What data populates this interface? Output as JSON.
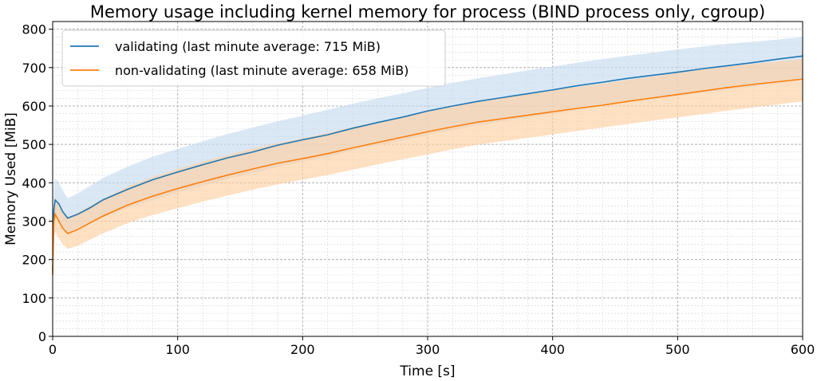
{
  "chart_data": {
    "type": "line",
    "title": "Memory usage including kernel memory for process (BIND process only, cgroup)",
    "xlabel": "Time [s]",
    "ylabel": "Memory Used [MiB]",
    "xlim": [
      0,
      600
    ],
    "ylim": [
      0,
      820
    ],
    "xticks": [
      0,
      100,
      200,
      300,
      400,
      500,
      600
    ],
    "yticks": [
      0,
      100,
      200,
      300,
      400,
      500,
      600,
      700,
      800
    ],
    "xtick_labels": [
      "0",
      "100",
      "200",
      "300",
      "400",
      "500",
      "600"
    ],
    "ytick_labels": [
      "0",
      "100",
      "200",
      "300",
      "400",
      "500",
      "600",
      "700",
      "800"
    ],
    "grid": true,
    "legend_position": "top-left",
    "series": [
      {
        "name": "validating (last minute average: 715 MiB)",
        "color": "#1f77b4",
        "band_color": "#c6dbef",
        "x": [
          0,
          1,
          2,
          3,
          5,
          8,
          12,
          20,
          30,
          40,
          60,
          80,
          100,
          120,
          140,
          160,
          180,
          200,
          220,
          240,
          260,
          280,
          300,
          320,
          340,
          360,
          380,
          400,
          420,
          440,
          460,
          480,
          500,
          520,
          540,
          560,
          580,
          600
        ],
        "y": [
          170,
          330,
          355,
          352,
          345,
          325,
          308,
          318,
          335,
          355,
          383,
          408,
          428,
          447,
          465,
          480,
          498,
          512,
          525,
          542,
          557,
          571,
          587,
          600,
          612,
          622,
          632,
          642,
          653,
          662,
          672,
          680,
          688,
          697,
          705,
          713,
          722,
          730
        ],
        "lower": [
          130,
          280,
          310,
          308,
          300,
          282,
          268,
          278,
          292,
          310,
          335,
          355,
          375,
          392,
          410,
          425,
          442,
          456,
          468,
          484,
          498,
          511,
          525,
          538,
          550,
          560,
          570,
          580,
          590,
          600,
          610,
          618,
          626,
          635,
          643,
          651,
          660,
          668
        ],
        "upper": [
          220,
          390,
          410,
          408,
          400,
          380,
          360,
          372,
          392,
          412,
          442,
          468,
          488,
          508,
          527,
          544,
          560,
          575,
          590,
          606,
          620,
          633,
          647,
          660,
          672,
          682,
          693,
          703,
          713,
          722,
          731,
          739,
          747,
          755,
          762,
          767,
          773,
          780
        ]
      },
      {
        "name": "non-validating (last minute average: 658 MiB)",
        "color": "#ff7f0e",
        "band_color": "#fdd0a2",
        "x": [
          0,
          1,
          2,
          3,
          5,
          8,
          12,
          20,
          30,
          40,
          60,
          80,
          100,
          120,
          140,
          160,
          180,
          200,
          220,
          240,
          260,
          280,
          300,
          320,
          340,
          360,
          380,
          400,
          420,
          440,
          460,
          480,
          500,
          520,
          540,
          560,
          580,
          600
        ],
        "y": [
          160,
          300,
          318,
          312,
          300,
          282,
          268,
          278,
          296,
          313,
          342,
          365,
          385,
          403,
          420,
          436,
          451,
          463,
          476,
          491,
          505,
          519,
          533,
          546,
          558,
          567,
          576,
          585,
          594,
          602,
          612,
          621,
          630,
          639,
          648,
          656,
          663,
          670
        ],
        "lower": [
          120,
          255,
          272,
          266,
          255,
          240,
          228,
          236,
          252,
          268,
          295,
          316,
          334,
          351,
          367,
          382,
          396,
          408,
          420,
          434,
          448,
          461,
          474,
          487,
          499,
          508,
          517,
          526,
          535,
          544,
          553,
          562,
          570,
          579,
          588,
          596,
          604,
          612
        ],
        "upper": [
          200,
          345,
          362,
          357,
          345,
          326,
          310,
          322,
          340,
          358,
          390,
          415,
          436,
          455,
          472,
          489,
          503,
          516,
          530,
          545,
          559,
          572,
          587,
          600,
          612,
          622,
          631,
          641,
          650,
          658,
          668,
          677,
          686,
          695,
          703,
          710,
          716,
          722
        ]
      }
    ]
  }
}
